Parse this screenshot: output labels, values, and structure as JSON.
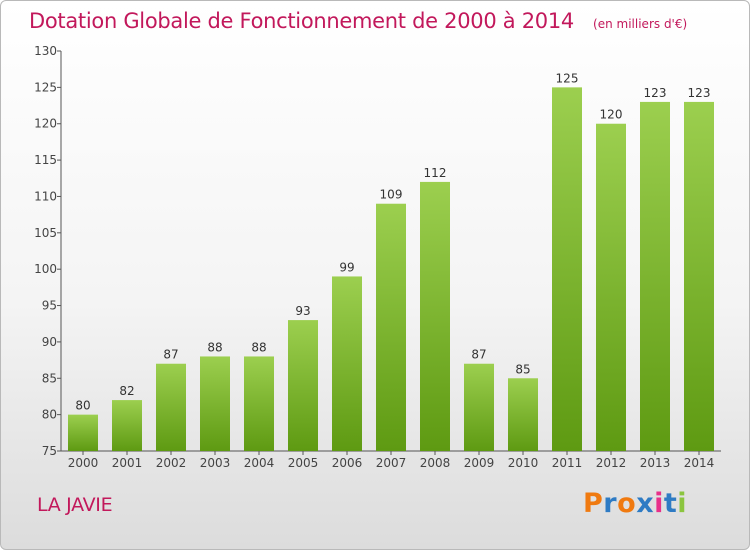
{
  "title": "Dotation Globale de Fonctionnement de 2000 à 2014",
  "subtitle": "(en milliers d'€)",
  "commune": "LA JAVIE",
  "logo": {
    "letters": [
      "P",
      "r",
      "o",
      "x",
      "i",
      "t",
      "i"
    ],
    "colors": [
      "#f07a10",
      "#2e7bc4",
      "#f07a10",
      "#2e7bc4",
      "#e8308a",
      "#2e7bc4",
      "#8bc53f"
    ]
  },
  "colors": {
    "bar_light": "#9ccf4f",
    "bar_dark": "#5e9a12",
    "title": "#c2185b"
  },
  "chart_data": {
    "type": "bar",
    "categories": [
      "2000",
      "2001",
      "2002",
      "2003",
      "2004",
      "2005",
      "2006",
      "2007",
      "2008",
      "2009",
      "2010",
      "2011",
      "2012",
      "2013",
      "2014"
    ],
    "values": [
      80,
      82,
      87,
      88,
      88,
      93,
      99,
      109,
      112,
      87,
      85,
      125,
      120,
      123,
      123
    ],
    "title": "Dotation Globale de Fonctionnement de 2000 à 2014",
    "subtitle": "(en milliers d'€)",
    "ylim": [
      75,
      130
    ],
    "yticks": [
      75,
      80,
      85,
      90,
      95,
      100,
      105,
      110,
      115,
      120,
      125,
      130
    ],
    "grid": false
  }
}
